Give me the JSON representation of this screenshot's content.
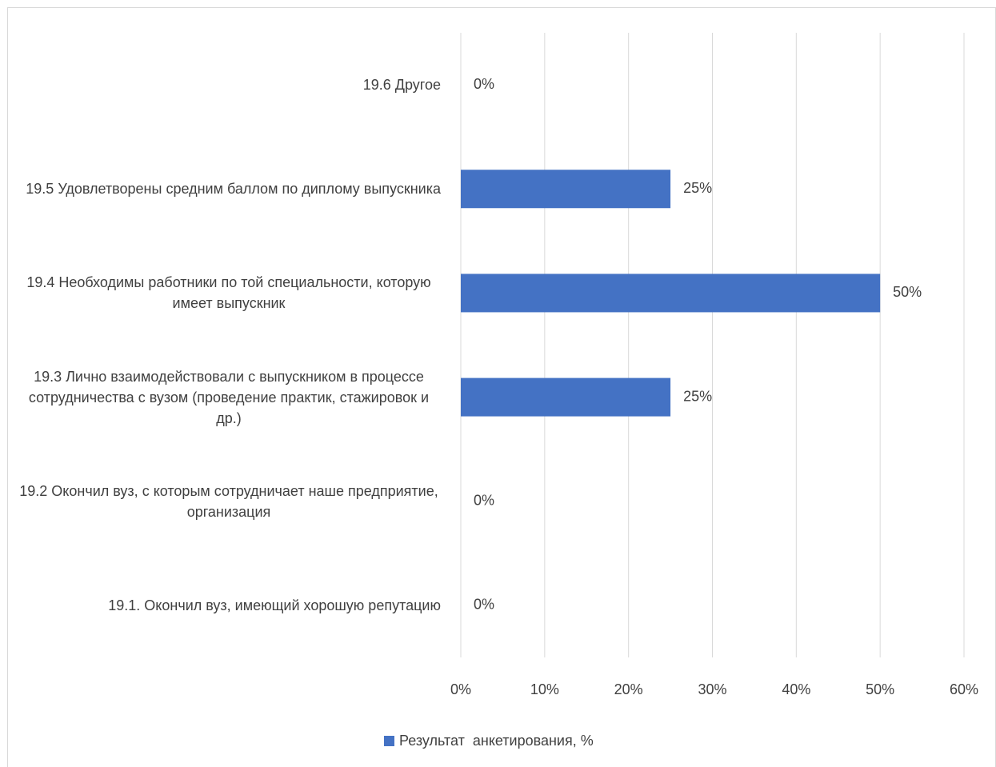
{
  "chart_data": {
    "type": "bar",
    "orientation": "horizontal",
    "categories": [
      "19.1. Окончил вуз, имеющий хорошую репутацию",
      "19.2 Окончил вуз, с которым сотрудничает наше предприятие, организация",
      "19.3 Лично взаимодействовали с выпускником в процессе сотрудничества с вузом (проведение практик, стажировок и др.)",
      "19.4 Необходимы работники по той специальности, которую имеет выпускник",
      "19.5 Удовлетворены средним баллом по диплому выпускника",
      "19.6 Другое"
    ],
    "series": [
      {
        "name": "Результат  анкетирования, %",
        "color": "#4472c4",
        "values": [
          0,
          0,
          25,
          50,
          25,
          0
        ],
        "value_labels": [
          "0%",
          "0%",
          "25%",
          "50%",
          "25%",
          "0%"
        ]
      }
    ],
    "xlim": [
      0,
      60
    ],
    "xticks": [
      {
        "value": 0,
        "label": "0%"
      },
      {
        "value": 10,
        "label": "10%"
      },
      {
        "value": 20,
        "label": "20%"
      },
      {
        "value": 30,
        "label": "30%"
      },
      {
        "value": 40,
        "label": "40%"
      },
      {
        "value": 50,
        "label": "50%"
      },
      {
        "value": 60,
        "label": "60%"
      }
    ],
    "grid": true,
    "legend": "bottom"
  }
}
